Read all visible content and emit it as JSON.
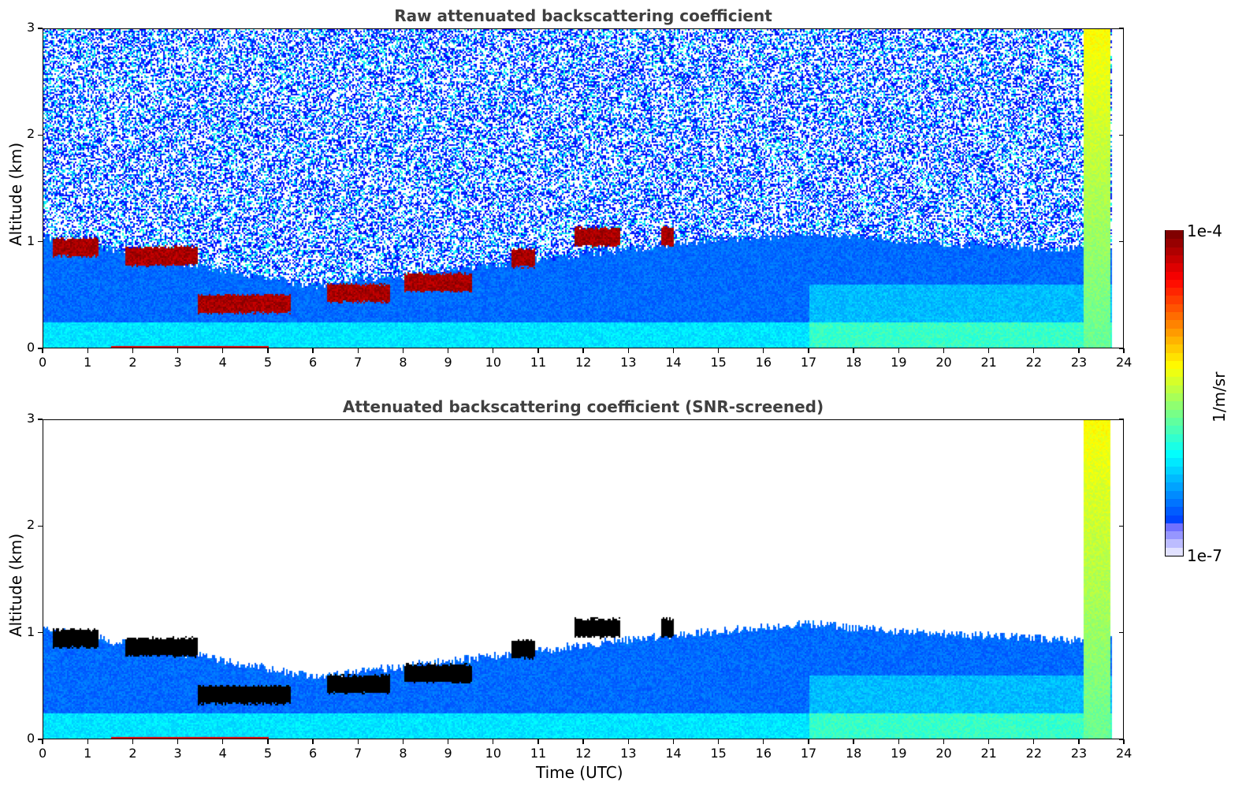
{
  "chart_data": [
    {
      "type": "heatmap",
      "id": "raw",
      "title": "Raw attenuated backscattering coefficient",
      "xlabel": "",
      "ylabel": "Altitude (km)",
      "xlim": [
        0,
        24
      ],
      "ylim": [
        0,
        3
      ],
      "xticks": [
        "0",
        "1",
        "2",
        "3",
        "4",
        "5",
        "6",
        "7",
        "8",
        "9",
        "10",
        "11",
        "12",
        "13",
        "14",
        "15",
        "16",
        "17",
        "18",
        "19",
        "20",
        "21",
        "22",
        "23",
        "24"
      ],
      "yticks": [
        "0",
        "1",
        "2",
        "3"
      ],
      "screened": false,
      "cloud_layers": [
        {
          "t": [
            0.2,
            1.2
          ],
          "alt_km": 0.95
        },
        {
          "t": [
            1.8,
            3.4
          ],
          "alt_km": 0.87
        },
        {
          "t": [
            3.4,
            5.5
          ],
          "alt_km": 0.42
        },
        {
          "t": [
            6.3,
            7.7
          ],
          "alt_km": 0.52
        },
        {
          "t": [
            8.0,
            9.5
          ],
          "alt_km": 0.62
        },
        {
          "t": [
            10.4,
            10.9
          ],
          "alt_km": 0.85
        },
        {
          "t": [
            11.8,
            12.8
          ],
          "alt_km": 1.05
        },
        {
          "t": [
            13.7,
            14.0
          ],
          "alt_km": 1.05
        }
      ],
      "boundary_layer_top_km": [
        {
          "t": 0,
          "alt": 1.0
        },
        {
          "t": 6,
          "alt": 0.55
        },
        {
          "t": 10,
          "alt": 0.75
        },
        {
          "t": 14,
          "alt": 0.95
        },
        {
          "t": 17,
          "alt": 1.05
        },
        {
          "t": 20,
          "alt": 0.95
        },
        {
          "t": 23,
          "alt": 0.9
        }
      ],
      "precipitation": {
        "t": [
          23.1,
          23.7
        ],
        "alt_km": [
          0,
          3
        ]
      }
    },
    {
      "type": "heatmap",
      "id": "screened",
      "title": "Attenuated backscattering coefficient (SNR-screened)",
      "xlabel": "Time (UTC)",
      "ylabel": "Altitude (km)",
      "xlim": [
        0,
        24
      ],
      "ylim": [
        0,
        3
      ],
      "xticks": [
        "0",
        "1",
        "2",
        "3",
        "4",
        "5",
        "6",
        "7",
        "8",
        "9",
        "10",
        "11",
        "12",
        "13",
        "14",
        "15",
        "16",
        "17",
        "18",
        "19",
        "20",
        "21",
        "22",
        "23",
        "24"
      ],
      "yticks": [
        "0",
        "1",
        "2",
        "3"
      ],
      "screened": true
    }
  ],
  "colorbar": {
    "label": "1/m/sr",
    "min_label": "1e-7",
    "max_label": "1e-4",
    "min": 1e-07,
    "max": 0.0001,
    "scale": "log",
    "colormap": "jet"
  }
}
